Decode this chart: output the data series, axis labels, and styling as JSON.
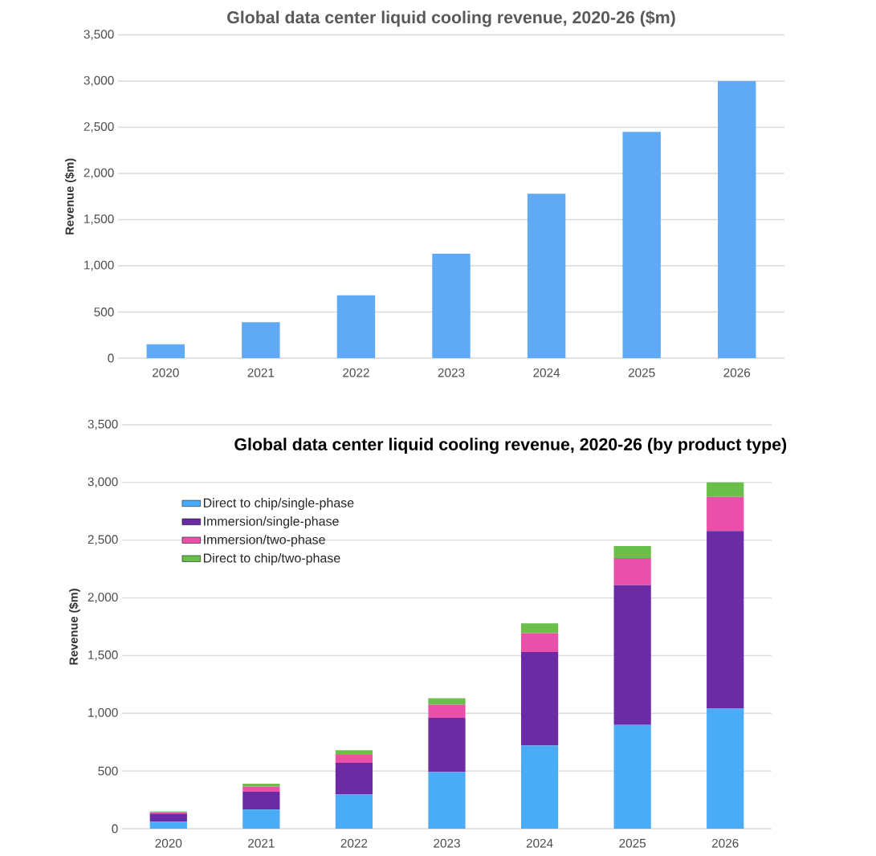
{
  "chart_data": [
    {
      "type": "bar",
      "title": "Global data center liquid cooling revenue, 2020-26 ($m)",
      "ylabel": "Revenue ($m)",
      "categories": [
        "2020",
        "2021",
        "2022",
        "2023",
        "2024",
        "2025",
        "2026"
      ],
      "values": [
        150,
        390,
        680,
        1130,
        1780,
        2450,
        3000
      ],
      "color": "#5fa9f5",
      "ylim": [
        0,
        3500
      ],
      "yticks": [
        0,
        500,
        {
          "value": 1000,
          "label": "1,000"
        },
        {
          "value": 1500,
          "label": "1,500"
        },
        {
          "value": 2000,
          "label": "2,000"
        },
        {
          "value": 2500,
          "label": "2,500"
        },
        {
          "value": 3000,
          "label": "3,000"
        },
        {
          "value": 3500,
          "label": "3,500"
        }
      ],
      "grid": "y"
    },
    {
      "type": "bar",
      "title": "Global data center liquid cooling revenue, 2020-26 (by product type)",
      "ylabel": "Revenue ($m)",
      "categories": [
        "2020",
        "2021",
        "2022",
        "2023",
        "2024",
        "2025",
        "2026"
      ],
      "stacked": true,
      "series": [
        {
          "name": "Direct to chip/single-phase",
          "color": "#4aacf7",
          "values": [
            60,
            165,
            295,
            490,
            720,
            900,
            1040
          ]
        },
        {
          "name": "Immersion/single-phase",
          "color": "#6a2ba5",
          "values": [
            70,
            155,
            275,
            470,
            810,
            1210,
            1540
          ]
        },
        {
          "name": "Immersion/two-phase",
          "color": "#ea4faa",
          "values": [
            12,
            45,
            70,
            115,
            165,
            235,
            295
          ]
        },
        {
          "name": "Direct to chip/two-phase",
          "color": "#6abf4b",
          "values": [
            8,
            25,
            40,
            55,
            85,
            105,
            125
          ]
        }
      ],
      "ylim": [
        0,
        3500
      ],
      "yticks": [
        0,
        500,
        {
          "value": 1000,
          "label": "1,000"
        },
        {
          "value": 1500,
          "label": "1,500"
        },
        {
          "value": 2000,
          "label": "2,000"
        },
        {
          "value": 2500,
          "label": "2,500"
        },
        {
          "value": 3000,
          "label": "3,000"
        },
        {
          "value": 3500,
          "label": "3,500"
        }
      ],
      "grid": "y",
      "legend": "top left"
    }
  ]
}
